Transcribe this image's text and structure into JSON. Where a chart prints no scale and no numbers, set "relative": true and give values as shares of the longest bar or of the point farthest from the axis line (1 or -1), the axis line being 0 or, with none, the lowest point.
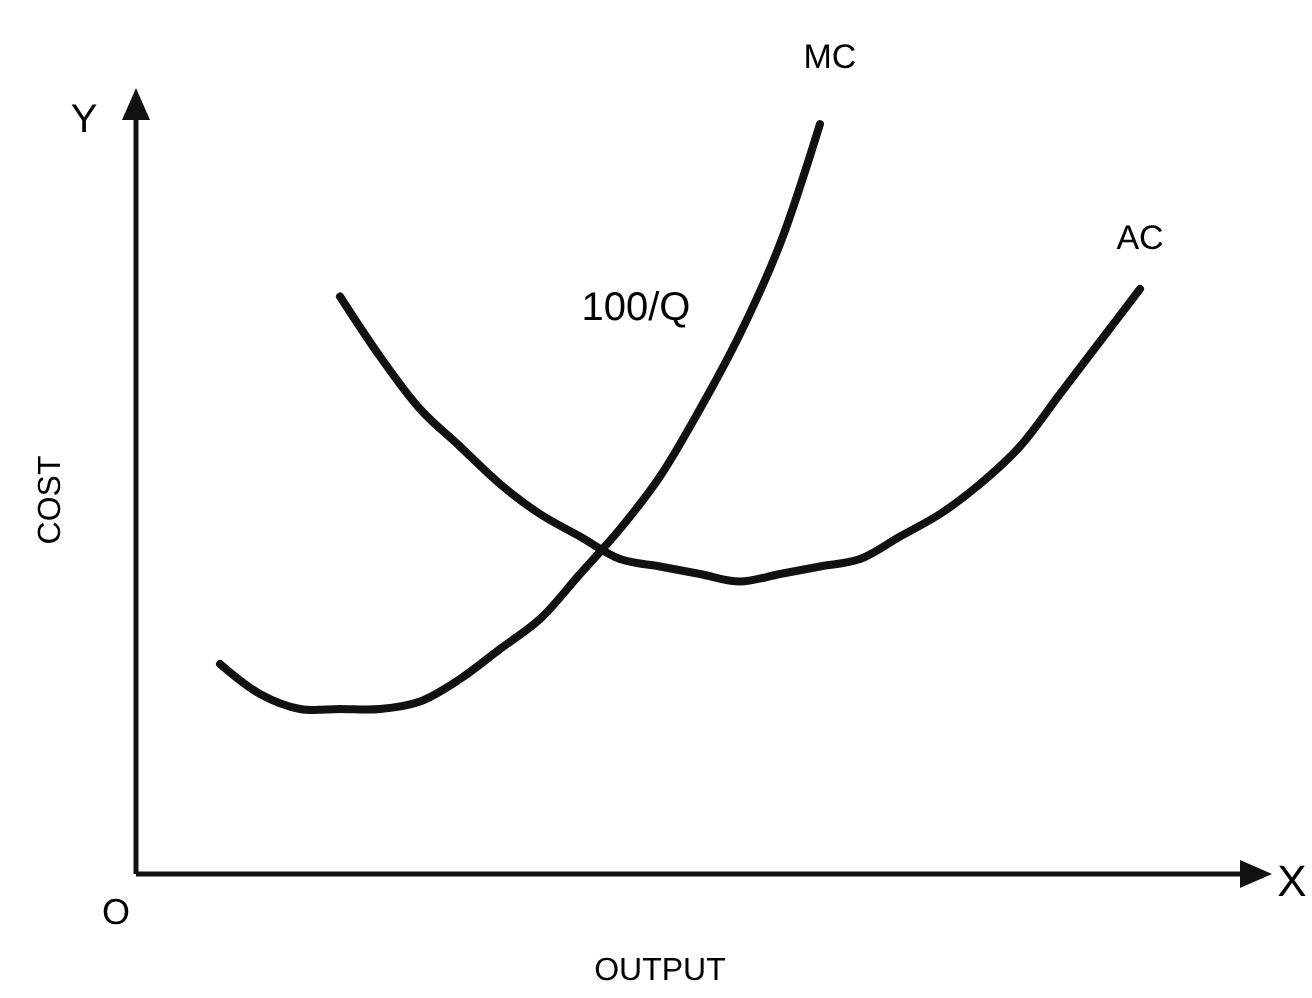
{
  "chart_data": {
    "type": "line",
    "relative": true,
    "xlabel": "OUTPUT",
    "ylabel": "COST",
    "marker": "none",
    "line_style": "solid",
    "categories": [
      null,
      null,
      null,
      null,
      null,
      null,
      null,
      null,
      null,
      null,
      null,
      null,
      null,
      null,
      null,
      null,
      null,
      null,
      null,
      null,
      null,
      null,
      null,
      null
    ],
    "series": [
      {
        "name": "MC",
        "color": "#111111",
        "values": [
          0.28,
          0.24,
          0.22,
          0.22,
          0.22,
          0.23,
          0.26,
          0.3,
          0.34,
          0.4,
          0.46,
          0.53,
          0.62,
          0.72,
          0.84,
          1.0,
          null,
          null,
          null,
          null,
          null,
          null,
          null,
          null
        ]
      },
      {
        "name": "AC",
        "color": "#111111",
        "values": [
          null,
          null,
          null,
          0.77,
          0.69,
          0.62,
          0.57,
          0.52,
          0.48,
          0.45,
          0.42,
          0.41,
          0.4,
          0.39,
          0.4,
          0.41,
          0.42,
          0.45,
          0.48,
          0.52,
          0.57,
          0.64,
          0.71,
          0.78
        ]
      }
    ],
    "annotations": [
      "Y",
      "X",
      "O",
      "100/Q"
    ]
  }
}
